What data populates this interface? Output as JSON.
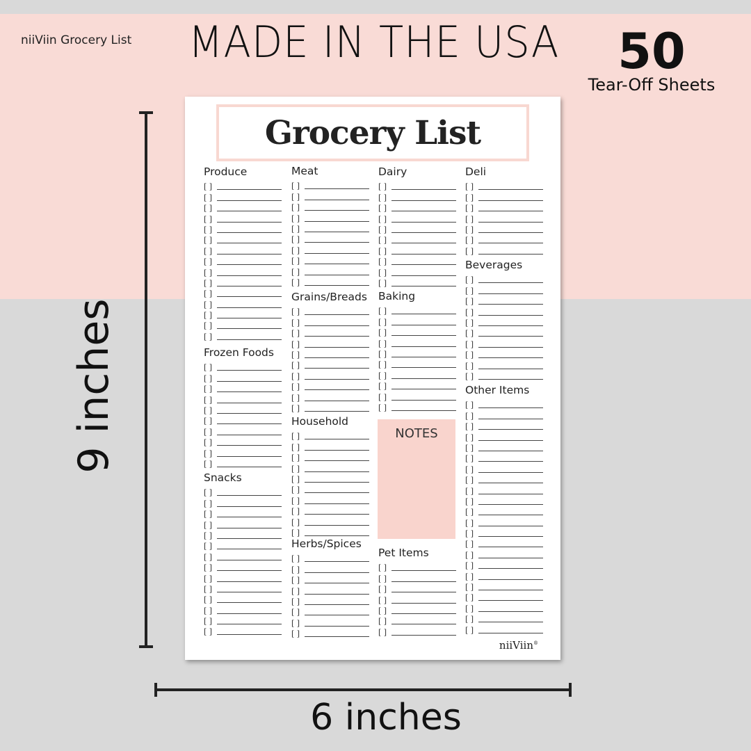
{
  "banner": {
    "brand": "niiViin Grocery List",
    "headline": "MADE IN THE USA",
    "sheet_count": "50",
    "sheet_label": "Tear-Off Sheets"
  },
  "colors": {
    "pink": "#f9dbd6",
    "gray": "#d9d9d9",
    "notes": "#f9d4cd"
  },
  "pad": {
    "title": "Grocery List",
    "checkbox_text": "[ ]",
    "notes_label": "NOTES",
    "logo": "niiViin",
    "logo_mark": "®",
    "sections": [
      {
        "name": "Produce",
        "rows": 15
      },
      {
        "name": "Frozen Foods",
        "rows": 10
      },
      {
        "name": "Snacks",
        "rows": 14
      },
      {
        "name": "Meat",
        "rows": 10
      },
      {
        "name": "Grains/Breads",
        "rows": 10
      },
      {
        "name": "Household",
        "rows": 10
      },
      {
        "name": "Herbs/Spices",
        "rows": 8
      },
      {
        "name": "Dairy",
        "rows": 10
      },
      {
        "name": "Baking",
        "rows": 10
      },
      {
        "name": "Pet Items",
        "rows": 7
      },
      {
        "name": "Deli",
        "rows": 7
      },
      {
        "name": "Beverages",
        "rows": 10
      },
      {
        "name": "Other Items",
        "rows": 22
      }
    ]
  },
  "dimensions": {
    "height_label": "9 inches",
    "width_label": "6 inches"
  }
}
